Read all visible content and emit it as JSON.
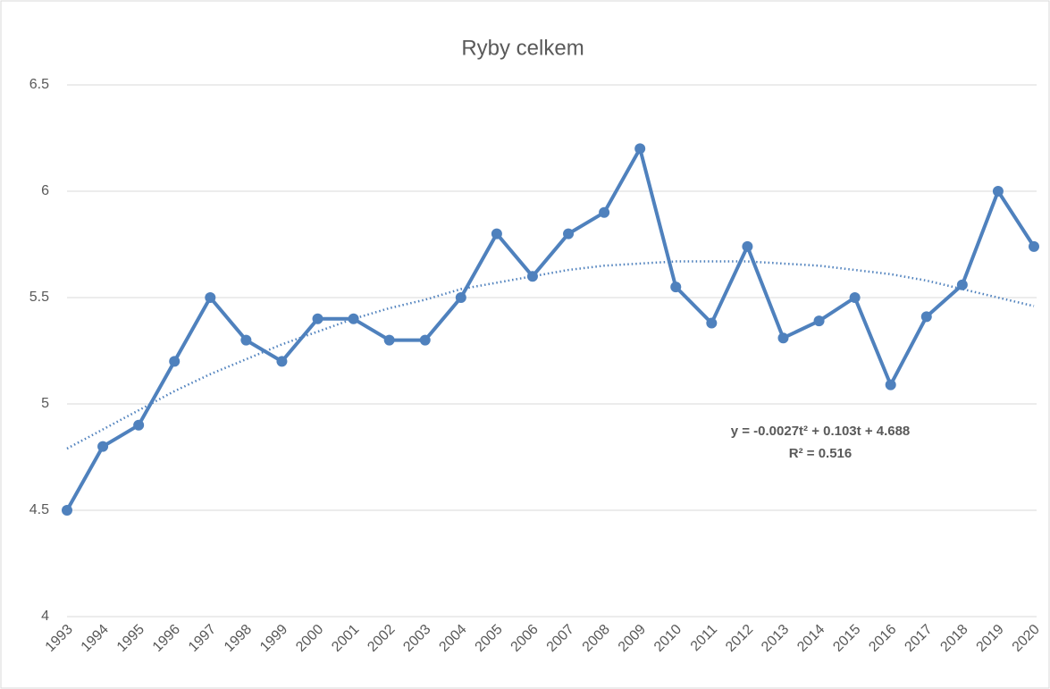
{
  "chart_data": {
    "type": "line",
    "title": "Ryby celkem",
    "categories": [
      "1993",
      "1994",
      "1995",
      "1996",
      "1997",
      "1998",
      "1999",
      "2000",
      "2001",
      "2002",
      "2003",
      "2004",
      "2005",
      "2006",
      "2007",
      "2008",
      "2009",
      "2010",
      "2011",
      "2012",
      "2013",
      "2014",
      "2015",
      "2016",
      "2017",
      "2018",
      "2019",
      "2020"
    ],
    "series": [
      {
        "color": "#4f81bd",
        "values": [
          4.5,
          4.8,
          4.9,
          5.2,
          5.5,
          5.3,
          5.2,
          5.4,
          5.4,
          5.3,
          5.3,
          5.5,
          5.8,
          5.6,
          5.8,
          5.9,
          6.2,
          5.55,
          5.38,
          5.74,
          5.31,
          5.39,
          5.5,
          5.09,
          5.41,
          5.56,
          6.0,
          5.74
        ]
      }
    ],
    "trendline": {
      "color": "#4f81bd",
      "values": [
        4.79,
        4.88,
        4.97,
        5.06,
        5.14,
        5.21,
        5.28,
        5.34,
        5.4,
        5.45,
        5.49,
        5.54,
        5.57,
        5.6,
        5.63,
        5.65,
        5.66,
        5.67,
        5.67,
        5.67,
        5.66,
        5.65,
        5.63,
        5.61,
        5.58,
        5.54,
        5.5,
        5.46
      ],
      "equation": "y = -0.0027t² + 0.103t + 4.688",
      "r2": "R² = 0.516"
    },
    "ylim": [
      4,
      6.5
    ],
    "yticks": [
      4,
      4.5,
      5,
      5.5,
      6,
      6.5
    ],
    "grid": true
  }
}
